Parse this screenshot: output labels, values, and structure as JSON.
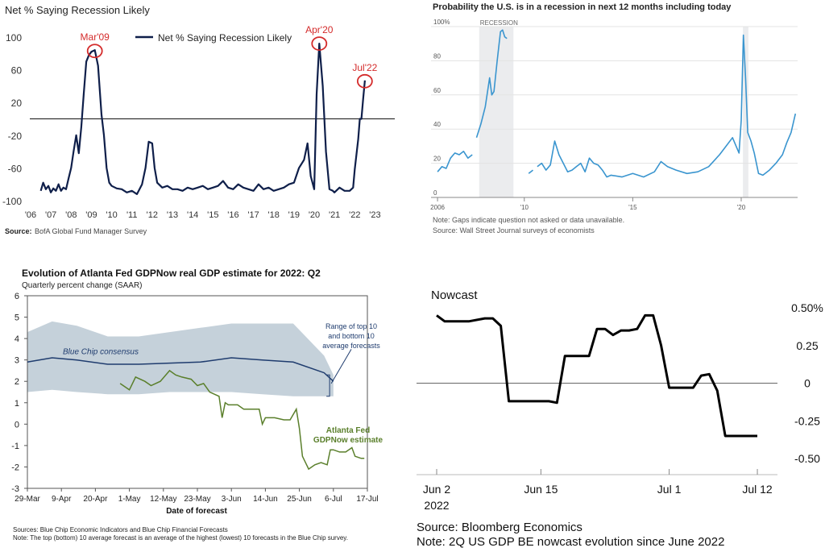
{
  "colors": {
    "navy": "#0f1f4a",
    "red": "#d42b2b",
    "wsj_blue": "#3a95cf",
    "recession_shade": "#ebecee",
    "atl_band": "#c5d1da",
    "bc_line": "#1f3c6e",
    "gdpnow_green": "#5a7f2b",
    "nowcast_black": "#000000"
  },
  "chart_data": [
    {
      "type": "line",
      "title": "Net % Saying Recession Likely",
      "legend": "Net % Saying Recession Likely",
      "legend_position": "top-center",
      "source_label": "Source:",
      "source_text": "BofA Global Fund Manager Survey",
      "ylim": [
        -100,
        100
      ],
      "yticks": [
        "100",
        "60",
        "20",
        "-20",
        "-60",
        "-100"
      ],
      "xlim": [
        2006,
        2023.5
      ],
      "xtick_values": [
        2006,
        2007,
        2008,
        2009,
        2010,
        2011,
        2012,
        2013,
        2014,
        2015,
        2016,
        2017,
        2018,
        2019,
        2020,
        2021,
        2022,
        2023
      ],
      "xtick_labels": [
        "'06",
        "'07",
        "'08",
        "'09",
        "'10",
        "'11",
        "'12",
        "'13",
        "'14",
        "'15",
        "'16",
        "'17",
        "'18",
        "'19",
        "'20",
        "'21",
        "'22",
        "'23"
      ],
      "zero_line": 0,
      "annotations": [
        {
          "text": "Mar'09",
          "x": 2009.17,
          "y": 84
        },
        {
          "text": "Apr'20",
          "x": 2020.25,
          "y": 93
        },
        {
          "text": "Jul'22",
          "x": 2022.5,
          "y": 47
        }
      ],
      "x": [
        2006.5,
        2006.62,
        2006.75,
        2006.88,
        2007.0,
        2007.12,
        2007.25,
        2007.38,
        2007.5,
        2007.62,
        2007.75,
        2007.88,
        2008.0,
        2008.12,
        2008.25,
        2008.38,
        2008.5,
        2008.62,
        2008.75,
        2008.88,
        2009.0,
        2009.17,
        2009.33,
        2009.5,
        2009.62,
        2009.75,
        2009.88,
        2010.0,
        2010.25,
        2010.5,
        2010.75,
        2011.0,
        2011.25,
        2011.5,
        2011.67,
        2011.83,
        2012.0,
        2012.12,
        2012.25,
        2012.5,
        2012.75,
        2013.0,
        2013.25,
        2013.5,
        2013.75,
        2014.0,
        2014.25,
        2014.5,
        2014.75,
        2015.0,
        2015.25,
        2015.5,
        2015.75,
        2016.0,
        2016.25,
        2016.5,
        2016.75,
        2017.0,
        2017.25,
        2017.5,
        2017.75,
        2018.0,
        2018.25,
        2018.5,
        2018.75,
        2019.0,
        2019.25,
        2019.5,
        2019.67,
        2019.83,
        2020.0,
        2020.12,
        2020.25,
        2020.42,
        2020.58,
        2020.75,
        2020.92,
        2021.0,
        2021.25,
        2021.5,
        2021.75,
        2021.92,
        2022.0,
        2022.17,
        2022.25,
        2022.33,
        2022.42,
        2022.5
      ],
      "values": [
        -88,
        -78,
        -86,
        -82,
        -90,
        -85,
        -88,
        -80,
        -88,
        -84,
        -86,
        -72,
        -60,
        -40,
        -20,
        -42,
        -10,
        30,
        70,
        78,
        82,
        84,
        65,
        5,
        -20,
        -60,
        -78,
        -82,
        -85,
        -86,
        -90,
        -88,
        -92,
        -80,
        -60,
        -28,
        -30,
        -60,
        -78,
        -84,
        -82,
        -86,
        -86,
        -88,
        -84,
        -86,
        -84,
        -82,
        -86,
        -84,
        -82,
        -76,
        -84,
        -86,
        -80,
        -84,
        -86,
        -88,
        -80,
        -86,
        -84,
        -88,
        -86,
        -84,
        -80,
        -78,
        -60,
        -50,
        -30,
        -70,
        -86,
        30,
        92,
        40,
        -40,
        -86,
        -88,
        -90,
        -84,
        -88,
        -88,
        -84,
        -62,
        -25,
        0,
        0,
        25,
        47
      ]
    },
    {
      "type": "line",
      "title": "Probability the U.S. is in a recession in next 12 months including today",
      "shade_label": "RECESSION",
      "ylim": [
        0,
        100
      ],
      "yticks": [
        "100%",
        "80",
        "60",
        "40",
        "20",
        "0"
      ],
      "ytick_values": [
        100,
        80,
        60,
        40,
        20,
        0
      ],
      "xlim": [
        2005.7,
        2022.6
      ],
      "xtick_values": [
        2006,
        2010,
        2015,
        2020
      ],
      "xtick_labels": [
        "2006",
        "'10",
        "'15",
        "'20"
      ],
      "recessions": [
        [
          2007.92,
          2009.5
        ],
        [
          2020.08,
          2020.33
        ]
      ],
      "notes": [
        "Note: Gaps indicate question not asked or data unavailable.",
        "Source: Wall Street Journal surveys of economists"
      ],
      "series": [
        {
          "x": [
            2006.0,
            2006.2,
            2006.4,
            2006.6,
            2006.8,
            2007.0,
            2007.2,
            2007.4,
            2007.6
          ],
          "values": [
            15,
            18,
            17,
            23,
            26,
            25,
            27,
            23,
            25
          ]
        },
        {
          "x": [
            2007.8,
            2008.0,
            2008.2,
            2008.4,
            2008.5,
            2008.6,
            2008.75,
            2008.9,
            2009.0,
            2009.1,
            2009.2
          ],
          "values": [
            35,
            43,
            53,
            70,
            60,
            62,
            80,
            97,
            98,
            94,
            93
          ]
        },
        {
          "x": [
            2010.2,
            2010.4
          ],
          "values": [
            14,
            16
          ]
        },
        {
          "x": [
            2010.6,
            2010.8,
            2011.0,
            2011.2,
            2011.4,
            2011.6,
            2011.8,
            2012.0,
            2012.2,
            2012.4,
            2012.6,
            2012.8,
            2013.0,
            2013.2,
            2013.4,
            2013.6,
            2013.8,
            2014.0,
            2014.5,
            2015.0,
            2015.5,
            2016.0,
            2016.3,
            2016.6,
            2017.0,
            2017.5,
            2018.0,
            2018.5,
            2019.0,
            2019.3,
            2019.6,
            2019.9,
            2020.0,
            2020.1,
            2020.2,
            2020.3,
            2020.45,
            2020.6,
            2020.8,
            2021.0,
            2021.3,
            2021.6,
            2021.9,
            2022.1,
            2022.3,
            2022.5
          ],
          "values": [
            18,
            20,
            16,
            19,
            33,
            25,
            20,
            15,
            16,
            18,
            20,
            15,
            23,
            20,
            19,
            16,
            12,
            13,
            12,
            14,
            12,
            15,
            21,
            18,
            16,
            14,
            15,
            18,
            25,
            30,
            35,
            26,
            45,
            95,
            70,
            38,
            33,
            26,
            14,
            13,
            16,
            20,
            25,
            32,
            38,
            49
          ]
        }
      ]
    },
    {
      "type": "line",
      "title": "Evolution of Atlanta Fed GDPNow real GDP estimate for 2022: Q2",
      "subtitle": "Quarterly percent change (SAAR)",
      "xlabel": "Date of forecast",
      "ylim": [
        -3,
        6
      ],
      "yticks": [
        "6",
        "5",
        "4",
        "3",
        "2",
        "1",
        "0",
        "-1",
        "-2",
        "-3"
      ],
      "ytick_values": [
        6,
        5,
        4,
        3,
        2,
        1,
        0,
        -1,
        -2,
        -3
      ],
      "xlim": [
        0,
        110
      ],
      "xtick_values": [
        0,
        11,
        22,
        33,
        44,
        55,
        66,
        77,
        88,
        99
      ],
      "xtick_labels": [
        "29-Mar",
        "9-Apr",
        "20-Apr",
        "1-May",
        "12-May",
        "23-May",
        "3-Jun",
        "14-Jun",
        "25-Jun",
        "6-Jul",
        "17-Jul"
      ],
      "xtick_all_values": [
        0,
        11,
        22,
        33,
        44,
        55,
        66,
        77,
        88,
        99,
        110
      ],
      "annotation_range": [
        "Range of top 10",
        "and bottom 10",
        "average forecasts"
      ],
      "label_bluechip": "Blue Chip consensus",
      "label_gdpnow": [
        "Atlanta Fed",
        "GDPNow estimate"
      ],
      "sources": "Sources: Blue Chip Economic Indicators and Blue Chip Financial Forecasts",
      "note": "Note: The top (bottom) 10 average forecast is an average of the highest (lowest) 10 forecasts in the Blue Chip survey.",
      "band_x": [
        0,
        8,
        16,
        26,
        36,
        46,
        56,
        66,
        76,
        86,
        96,
        99
      ],
      "band_upper": [
        4.3,
        4.8,
        4.6,
        4.1,
        4.1,
        4.3,
        4.5,
        4.7,
        4.7,
        4.7,
        3.2,
        2.3
      ],
      "band_lower": [
        1.5,
        1.6,
        1.5,
        1.4,
        1.4,
        1.5,
        1.5,
        1.5,
        1.4,
        1.3,
        1.3,
        1.3
      ],
      "series": [
        {
          "name": "Blue Chip consensus",
          "x": [
            0,
            8,
            16,
            26,
            36,
            46,
            56,
            66,
            76,
            86,
            96,
            99
          ],
          "values": [
            2.9,
            3.1,
            3.0,
            2.8,
            2.8,
            2.85,
            2.9,
            3.1,
            3.0,
            2.9,
            2.4,
            2.0
          ]
        },
        {
          "name": "Atlanta Fed GDPNow estimate",
          "x": [
            30,
            33,
            35,
            38,
            40,
            43,
            46,
            48,
            50,
            53,
            55,
            57,
            59,
            62,
            63,
            64,
            65,
            68,
            70,
            72,
            75,
            76,
            77,
            80,
            83,
            85,
            87,
            88,
            89,
            91,
            93,
            95,
            97,
            98,
            99,
            101,
            103,
            105,
            106,
            108,
            109
          ],
          "values": [
            1.9,
            1.6,
            2.2,
            2.0,
            1.8,
            2.0,
            2.5,
            2.3,
            2.2,
            2.1,
            1.8,
            1.9,
            1.5,
            1.3,
            0.3,
            1.0,
            0.9,
            0.9,
            0.7,
            0.7,
            0.7,
            0.0,
            0.3,
            0.3,
            0.2,
            0.2,
            0.7,
            -0.2,
            -1.5,
            -2.1,
            -1.9,
            -1.8,
            -1.9,
            -1.2,
            -1.2,
            -1.3,
            -1.3,
            -1.1,
            -1.5,
            -1.6,
            -1.6
          ]
        }
      ]
    },
    {
      "type": "line",
      "title": "Nowcast",
      "ylim": [
        -0.5,
        0.5
      ],
      "yticks": [
        "0.50%",
        "0.25",
        "0",
        "-0.25",
        "-0.50"
      ],
      "ytick_values": [
        0.5,
        0.25,
        0,
        -0.25,
        -0.5
      ],
      "xlim": [
        0,
        41
      ],
      "xtick_values": [
        0,
        13,
        29,
        40
      ],
      "xtick_labels": [
        "Jun 2",
        "Jun 15",
        "Jul 1",
        "Jul 12"
      ],
      "year_label": "2022",
      "source": "Source: Bloomberg Economics",
      "note": "Note: 2Q US GDP BE nowcast evolution since June 2022",
      "x": [
        0,
        1,
        3,
        4,
        6,
        7,
        8,
        9,
        10,
        11,
        12,
        13,
        14,
        15,
        16,
        17,
        18,
        19,
        20,
        21,
        22,
        23,
        24,
        25,
        26,
        27,
        28,
        29,
        30,
        31,
        32,
        33,
        34,
        35,
        36,
        37,
        38,
        39,
        40
      ],
      "values": [
        0.45,
        0.41,
        0.41,
        0.41,
        0.43,
        0.43,
        0.38,
        -0.12,
        -0.12,
        -0.12,
        -0.12,
        -0.12,
        -0.12,
        -0.13,
        0.18,
        0.18,
        0.18,
        0.18,
        0.36,
        0.36,
        0.32,
        0.35,
        0.35,
        0.36,
        0.45,
        0.45,
        0.25,
        -0.03,
        -0.03,
        -0.03,
        -0.03,
        0.05,
        0.06,
        -0.05,
        -0.35,
        -0.35,
        -0.35,
        -0.35,
        -0.35
      ]
    }
  ]
}
